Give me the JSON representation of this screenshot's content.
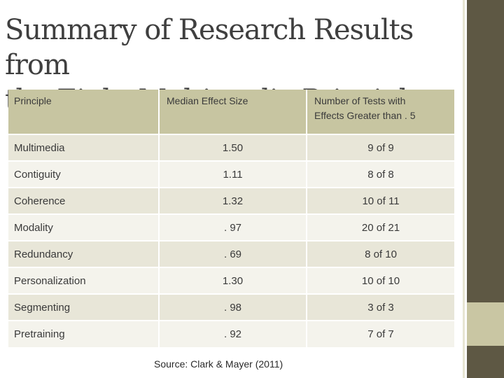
{
  "title": "Summary of Research Results from\nthe Eight Multimedia Principles",
  "table": {
    "headers": [
      "Principle",
      "Median Effect Size",
      "Number of Tests with\nEffects Greater than . 5"
    ],
    "rows": [
      {
        "principle": "Multimedia",
        "effect": "1.50",
        "tests": "9 of 9"
      },
      {
        "principle": "Contiguity",
        "effect": "1.11",
        "tests": "8 of 8"
      },
      {
        "principle": "Coherence",
        "effect": "1.32",
        "tests": "10 of 11"
      },
      {
        "principle": "Modality",
        "effect": ". 97",
        "tests": "20 of 21"
      },
      {
        "principle": "Redundancy",
        "effect": ". 69",
        "tests": "8 of 10"
      },
      {
        "principle": "Personalization",
        "effect": "1.30",
        "tests": "10 of 10"
      },
      {
        "principle": "Segmenting",
        "effect": ". 98",
        "tests": "3 of 3"
      },
      {
        "principle": "Pretraining",
        "effect": ". 92",
        "tests": "7 of 7"
      }
    ]
  },
  "source": "Source: Clark & Mayer (2011)",
  "colors": {
    "header_bg": "#c7c5a1",
    "row_odd": "#e8e6d8",
    "row_even": "#f4f3ec",
    "accent_bar": "#5e5844",
    "accent_bar_light": "#c9c6a3"
  }
}
